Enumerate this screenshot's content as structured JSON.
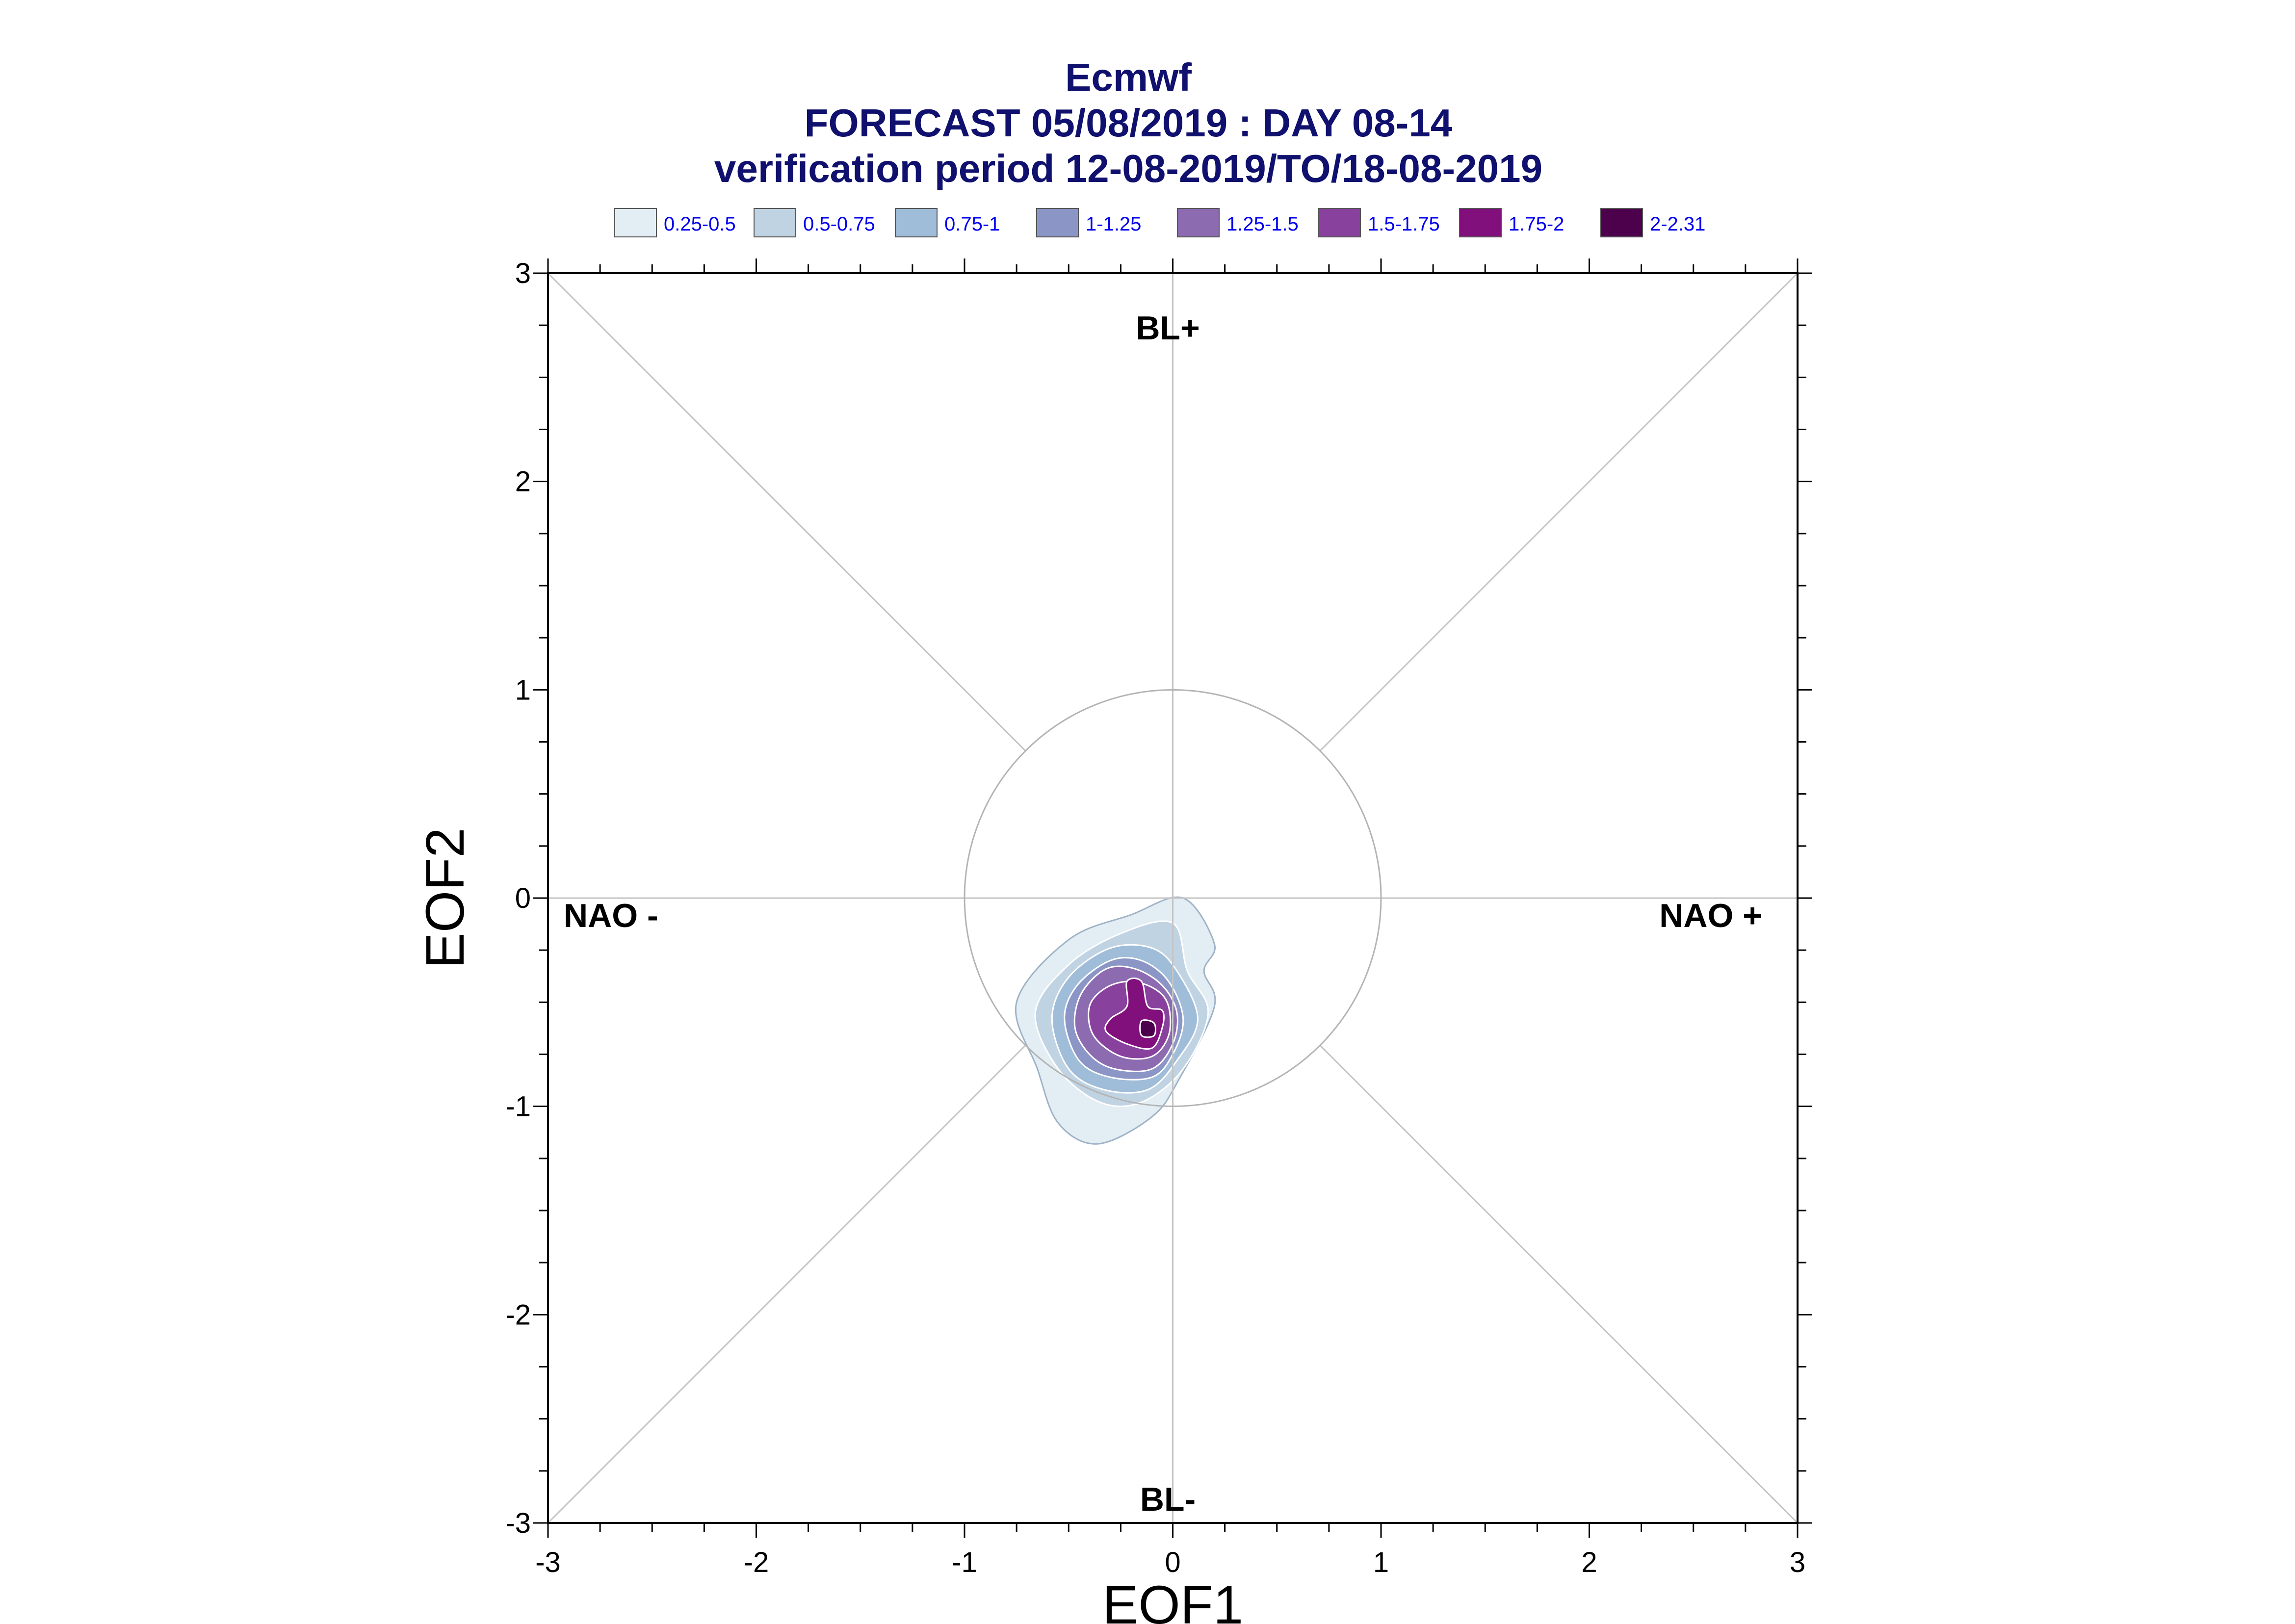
{
  "chart_data": {
    "type": "contour",
    "title_lines": [
      "Ecmwf",
      "FORECAST 05/08/2019 : DAY 08-14",
      "verification period 12-08-2019/TO/18-08-2019"
    ],
    "xlabel": "EOF1",
    "ylabel": "EOF2",
    "xlim": [
      -3,
      3
    ],
    "ylim": [
      -3,
      3
    ],
    "xticks": [
      -3,
      -2,
      -1,
      0,
      1,
      2,
      3
    ],
    "yticks": [
      -3,
      -2,
      -1,
      0,
      1,
      2,
      3
    ],
    "xtick_labels": [
      "-3",
      "-2",
      "-1",
      "0",
      "1",
      "2",
      "3"
    ],
    "ytick_labels": [
      "-3",
      "-2",
      "-1",
      "0",
      "1",
      "2",
      "3"
    ],
    "regime_labels": {
      "top": "BL+",
      "bottom": "BL-",
      "left": "NAO -",
      "right": "NAO +"
    },
    "reference_circle_radius": 1,
    "legend": [
      {
        "label": "0.25-0.5",
        "color": "#e3edf4"
      },
      {
        "label": "0.5-0.75",
        "color": "#c0d3e3"
      },
      {
        "label": "0.75-1",
        "color": "#9fbcd8"
      },
      {
        "label": "1-1.25",
        "color": "#8c96c6"
      },
      {
        "label": "1.25-1.5",
        "color": "#8c6bb1"
      },
      {
        "label": "1.5-1.75",
        "color": "#88419d"
      },
      {
        "label": "1.75-2",
        "color": "#810f7c"
      },
      {
        "label": "2-2.31",
        "color": "#4d004b"
      }
    ],
    "density_peak": {
      "x": -0.12,
      "y": -0.63
    },
    "density_max": 2.31,
    "contour_levels": [
      {
        "level": 0.25,
        "points": [
          [
            -0.36,
            -1.18
          ],
          [
            -0.1,
            -1.05
          ],
          [
            0.03,
            -0.87
          ],
          [
            0.2,
            -0.52
          ],
          [
            0.15,
            -0.35
          ],
          [
            0.2,
            -0.22
          ],
          [
            0.05,
            0.0
          ],
          [
            -0.2,
            -0.08
          ],
          [
            -0.5,
            -0.2
          ],
          [
            -0.75,
            -0.5
          ],
          [
            -0.65,
            -0.82
          ],
          [
            -0.55,
            -1.08
          ]
        ]
      },
      {
        "level": 0.5,
        "points": [
          [
            -0.35,
            -0.98
          ],
          [
            -0.15,
            -0.98
          ],
          [
            0.05,
            -0.82
          ],
          [
            0.17,
            -0.55
          ],
          [
            0.07,
            -0.35
          ],
          [
            0.0,
            -0.12
          ],
          [
            -0.25,
            -0.17
          ],
          [
            -0.5,
            -0.32
          ],
          [
            -0.66,
            -0.55
          ],
          [
            -0.55,
            -0.82
          ]
        ]
      },
      {
        "level": 0.75,
        "points": [
          [
            -0.33,
            -0.92
          ],
          [
            -0.12,
            -0.92
          ],
          [
            0.02,
            -0.78
          ],
          [
            0.12,
            -0.58
          ],
          [
            0.02,
            -0.35
          ],
          [
            -0.1,
            -0.24
          ],
          [
            -0.3,
            -0.24
          ],
          [
            -0.5,
            -0.38
          ],
          [
            -0.58,
            -0.58
          ],
          [
            -0.5,
            -0.82
          ]
        ]
      },
      {
        "level": 1.0,
        "points": [
          [
            -0.3,
            -0.86
          ],
          [
            -0.1,
            -0.86
          ],
          [
            0.0,
            -0.75
          ],
          [
            0.05,
            -0.58
          ],
          [
            -0.02,
            -0.4
          ],
          [
            -0.15,
            -0.3
          ],
          [
            -0.3,
            -0.3
          ],
          [
            -0.46,
            -0.42
          ],
          [
            -0.52,
            -0.58
          ],
          [
            -0.45,
            -0.78
          ]
        ]
      },
      {
        "level": 1.25,
        "points": [
          [
            -0.28,
            -0.82
          ],
          [
            -0.1,
            -0.82
          ],
          [
            0.0,
            -0.7
          ],
          [
            0.02,
            -0.55
          ],
          [
            -0.05,
            -0.42
          ],
          [
            -0.18,
            -0.34
          ],
          [
            -0.32,
            -0.34
          ],
          [
            -0.44,
            -0.46
          ],
          [
            -0.47,
            -0.62
          ],
          [
            -0.4,
            -0.75
          ]
        ]
      },
      {
        "level": 1.5,
        "points": [
          [
            -0.25,
            -0.76
          ],
          [
            -0.1,
            -0.76
          ],
          [
            -0.02,
            -0.66
          ],
          [
            -0.02,
            -0.52
          ],
          [
            -0.08,
            -0.44
          ],
          [
            -0.2,
            -0.4
          ],
          [
            -0.32,
            -0.43
          ],
          [
            -0.4,
            -0.52
          ],
          [
            -0.38,
            -0.66
          ]
        ]
      },
      {
        "level": 1.75,
        "points": [
          [
            -0.22,
            -0.7
          ],
          [
            -0.1,
            -0.72
          ],
          [
            -0.05,
            -0.62
          ],
          [
            -0.05,
            -0.54
          ],
          [
            -0.12,
            -0.52
          ],
          [
            -0.15,
            -0.4
          ],
          [
            -0.22,
            -0.4
          ],
          [
            -0.22,
            -0.52
          ],
          [
            -0.3,
            -0.58
          ],
          [
            -0.32,
            -0.64
          ]
        ]
      },
      {
        "level": 2.0,
        "points": [
          [
            -0.15,
            -0.66
          ],
          [
            -0.09,
            -0.66
          ],
          [
            -0.09,
            -0.6
          ],
          [
            -0.15,
            -0.59
          ]
        ]
      }
    ]
  }
}
